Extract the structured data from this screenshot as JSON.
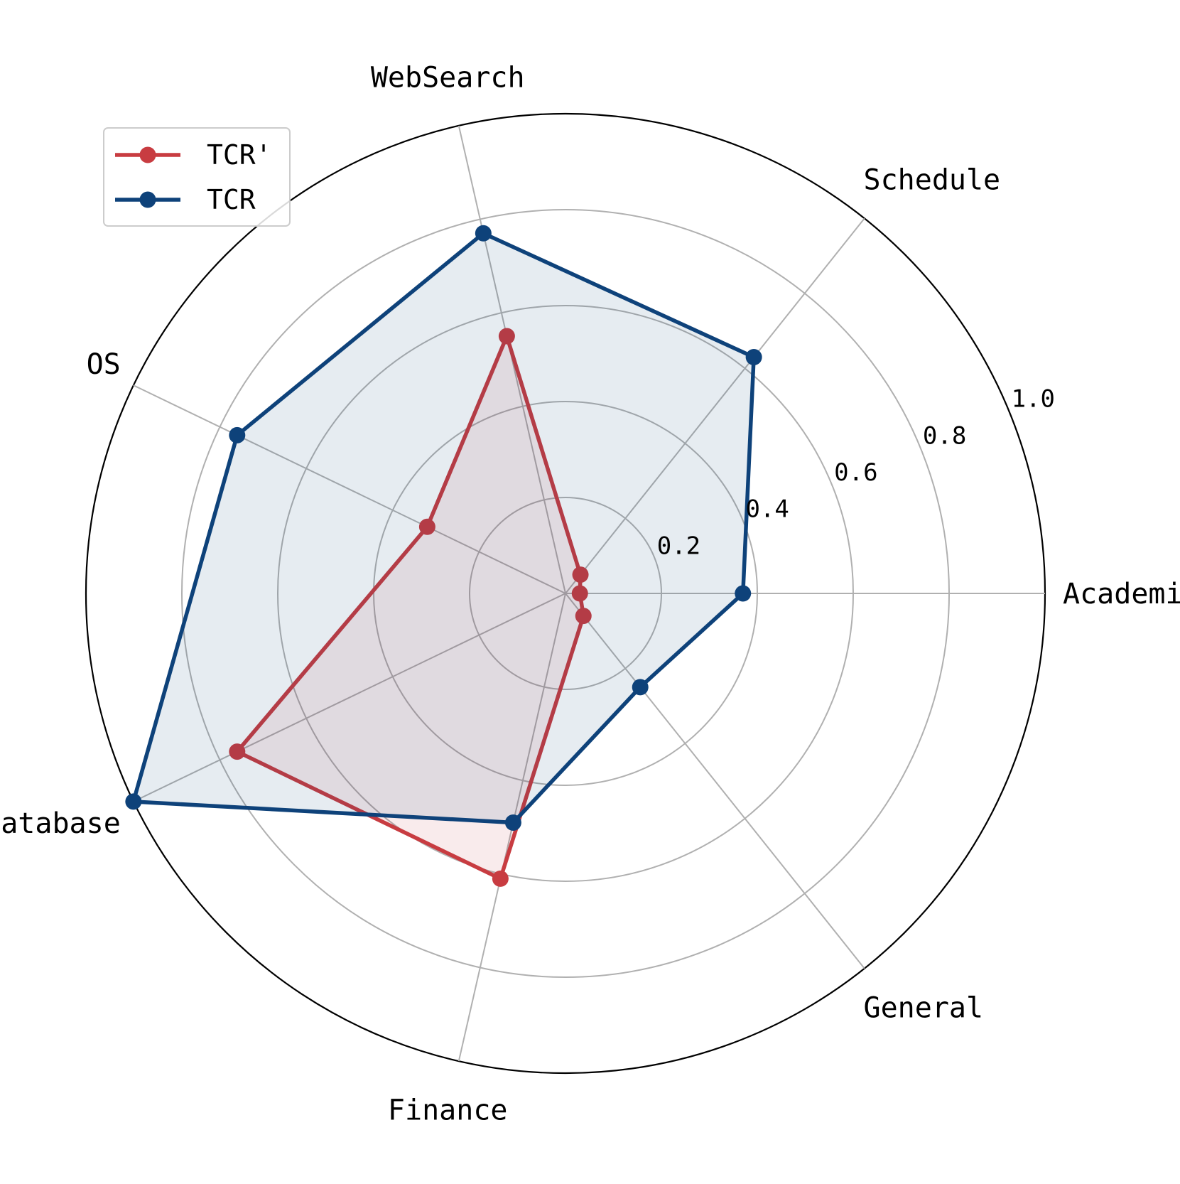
{
  "chart_data": {
    "type": "radar",
    "categories": [
      "Academic",
      "Schedule",
      "WebSearch",
      "OS",
      "Database",
      "Finance",
      "General"
    ],
    "rlim": [
      0,
      1.0
    ],
    "rticks": [
      0.2,
      0.4,
      0.6,
      0.8,
      1.0
    ],
    "rtick_labels": [
      "0.2",
      "0.4",
      "0.6",
      "0.8",
      "1.0"
    ],
    "grid": true,
    "legend_position": "top-left",
    "series": [
      {
        "name": "TCR'",
        "values": [
          0.03,
          0.05,
          0.55,
          0.32,
          0.76,
          0.61,
          0.06
        ],
        "color": "#c83c41"
      },
      {
        "name": "TCR",
        "values": [
          0.37,
          0.63,
          0.77,
          0.76,
          1.0,
          0.49,
          0.25
        ],
        "color": "#0e427a"
      }
    ]
  }
}
